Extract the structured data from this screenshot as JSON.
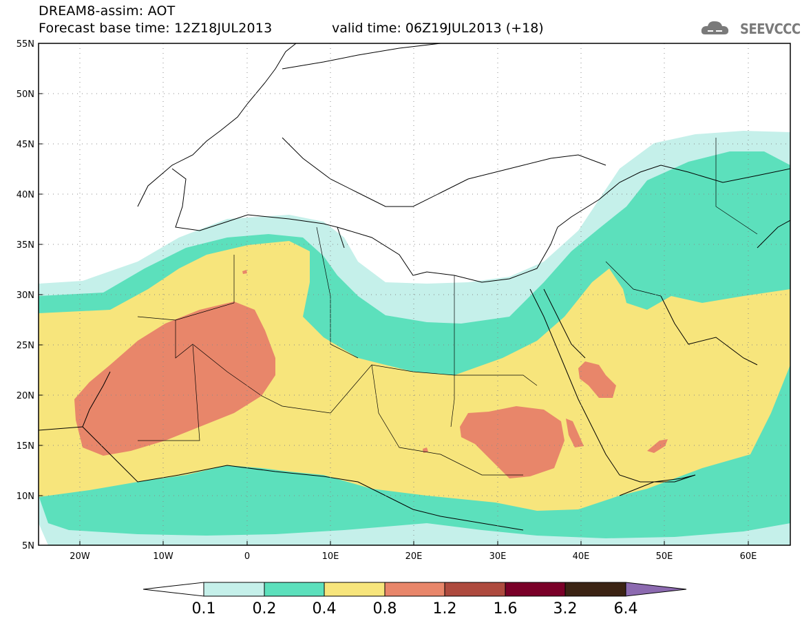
{
  "header": {
    "title": "DREAM8-assim: AOT",
    "base_time": "Forecast base time: 12Z18JUL2013",
    "valid_time": "valid time: 06Z19JUL2013 (+18)"
  },
  "logo": {
    "text": "SEEVCCC",
    "icon": "cloud-icon"
  },
  "map": {
    "lat_labels": [
      "55N",
      "50N",
      "45N",
      "40N",
      "35N",
      "30N",
      "25N",
      "20N",
      "15N",
      "10N",
      "5N"
    ],
    "lon_labels": [
      "20W",
      "10W",
      "0",
      "10E",
      "20E",
      "30E",
      "40E",
      "50E",
      "60E"
    ],
    "lon_range": [
      -25,
      65
    ],
    "lat_range": [
      5,
      55
    ],
    "grid": "dotted"
  },
  "colorbar": {
    "labels": [
      "0.1",
      "0.2",
      "0.4",
      "0.8",
      "1.2",
      "1.6",
      "3.2",
      "6.4"
    ],
    "colors": {
      "c01_02": "#c5f0ea",
      "c02_04": "#5ce0bc",
      "c04_08": "#f7e57c",
      "c08_12": "#e8866a",
      "c12_16": "#ae4a3e",
      "c16_32": "#7a0028",
      "c32_64": "#3c2414",
      "c64p": "#8c6ab0"
    }
  }
}
